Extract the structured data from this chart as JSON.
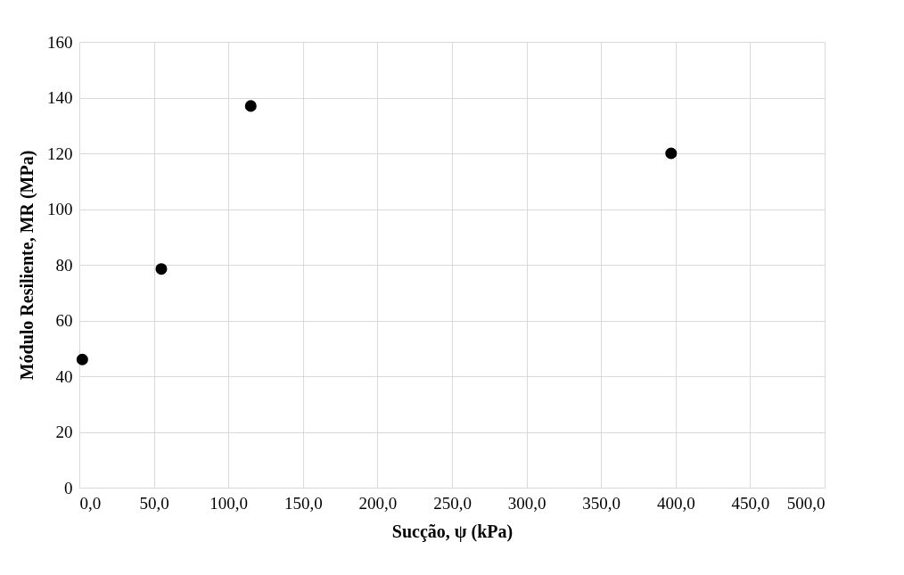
{
  "chart_data": {
    "type": "scatter",
    "xlabel": "Sucção, ψ (kPa)",
    "ylabel": "Módulo Resiliente, MR (MPa)",
    "x": [
      2,
      55,
      115,
      397
    ],
    "series": [
      {
        "color": "#000000",
        "values": [
          46,
          78.5,
          137,
          120
        ]
      }
    ],
    "xlim": [
      0,
      500
    ],
    "ylim": [
      0,
      160
    ],
    "xticks": [
      {
        "value": 0,
        "label": "0,0"
      },
      {
        "value": 50,
        "label": "50,0"
      },
      {
        "value": 100,
        "label": "100,0"
      },
      {
        "value": 150,
        "label": "150,0"
      },
      {
        "value": 200,
        "label": "200,0"
      },
      {
        "value": 250,
        "label": "250,0"
      },
      {
        "value": 300,
        "label": "300,0"
      },
      {
        "value": 350,
        "label": "350,0"
      },
      {
        "value": 400,
        "label": "400,0"
      },
      {
        "value": 450,
        "label": "450,0"
      },
      {
        "value": 500,
        "label": "500,0"
      }
    ],
    "yticks": [
      0,
      20,
      40,
      60,
      80,
      100,
      120,
      140,
      160
    ],
    "grid": true,
    "marker": "circle",
    "legend": false
  }
}
